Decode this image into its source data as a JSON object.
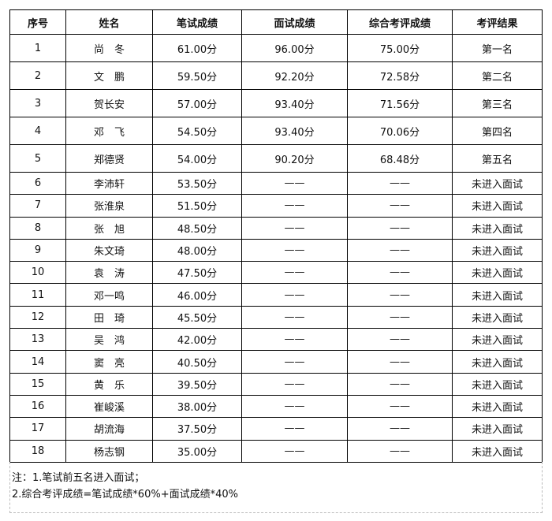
{
  "headers": [
    "序号",
    "姓名",
    "笔试成绩",
    "面试成绩",
    "综合考评成绩",
    "考评结果"
  ],
  "rows": [
    [
      "1",
      "尚　冬",
      "61.00分",
      "96.00分",
      "75.00分",
      "第一名"
    ],
    [
      "2",
      "文　鹏",
      "59.50分",
      "92.20分",
      "72.58分",
      "第二名"
    ],
    [
      "3",
      "贺长安",
      "57.00分",
      "93.40分",
      "71.56分",
      "第三名"
    ],
    [
      "4",
      "邓　飞",
      "54.50分",
      "93.40分",
      "70.06分",
      "第四名"
    ],
    [
      "5",
      "郑德贤",
      "54.00分",
      "90.20分",
      "68.48分",
      "第五名"
    ],
    [
      "6",
      "李沛轩",
      "53.50分",
      "——",
      "——",
      "未进入面试"
    ],
    [
      "7",
      "张淮泉",
      "51.50分",
      "——",
      "——",
      "未进入面试"
    ],
    [
      "8",
      "张　旭",
      "48.50分",
      "——",
      "——",
      "未进入面试"
    ],
    [
      "9",
      "朱文琦",
      "48.00分",
      "——",
      "——",
      "未进入面试"
    ],
    [
      "10",
      "袁　涛",
      "47.50分",
      "——",
      "——",
      "未进入面试"
    ],
    [
      "11",
      "邓一鸣",
      "46.00分",
      "——",
      "——",
      "未进入面试"
    ],
    [
      "12",
      "田　琦",
      "45.50分",
      "——",
      "——",
      "未进入面试"
    ],
    [
      "13",
      "吴　鸿",
      "42.00分",
      "——",
      "——",
      "未进入面试"
    ],
    [
      "14",
      "窦　亮",
      "40.50分",
      "——",
      "——",
      "未进入面试"
    ],
    [
      "15",
      "黄　乐",
      "39.50分",
      "——",
      "——",
      "未进入面试"
    ],
    [
      "16",
      "崔峻溪",
      "38.00分",
      "——",
      "——",
      "未进入面试"
    ],
    [
      "17",
      "胡流海",
      "37.50分",
      "——",
      "——",
      "未进入面试"
    ],
    [
      "18",
      "杨志钢",
      "35.00分",
      "——",
      "——",
      "未进入面试"
    ]
  ],
  "notes": [
    "注：1.笔试前五名进入面试；",
    "2.综合考评成绩=笔试成绩*60%+面试成绩*40%"
  ]
}
